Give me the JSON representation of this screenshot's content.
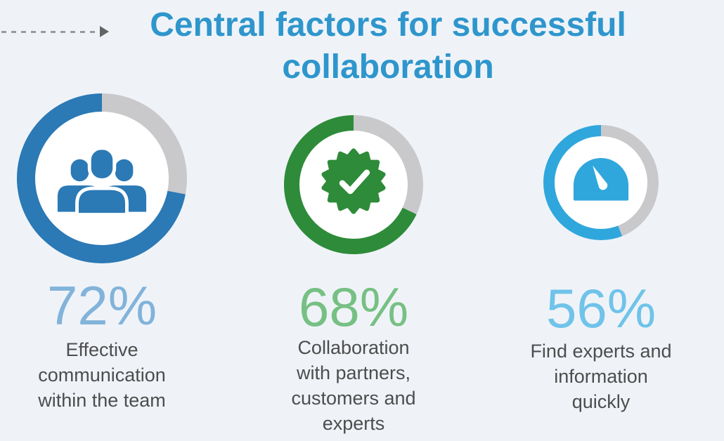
{
  "theme": {
    "background": "#eff3f8",
    "title_color": "#2e96cc",
    "text_color": "#4d4d4d",
    "track_color": "#c9c9cb",
    "arrow_dash_color": "#9a9a9a",
    "arrow_head_color": "#636363"
  },
  "title": {
    "text": "Central factors for successful collaboration"
  },
  "chart_data": {
    "type": "donut",
    "title": "Central factors for successful collaboration",
    "unit": "%",
    "track_color": "#c9c9cb",
    "legend_position": "below-each-donut",
    "start_angle": "top",
    "fill_direction": "counterclockwise",
    "series": [
      {
        "value": 72,
        "display": "72%",
        "label": "Effective communication within the team",
        "color": "#2b79b5",
        "value_color": "#82b3da",
        "icon": "team-people-icon"
      },
      {
        "value": 68,
        "display": "68%",
        "label": "Collaboration with partners, customers and experts",
        "color": "#2e8b39",
        "value_color": "#76c083",
        "icon": "badge-check-icon"
      },
      {
        "value": 56,
        "display": "56%",
        "label": "Find experts and information quickly",
        "color": "#2fa7dc",
        "value_color": "#70c3e9",
        "icon": "gauge-icon"
      }
    ]
  }
}
